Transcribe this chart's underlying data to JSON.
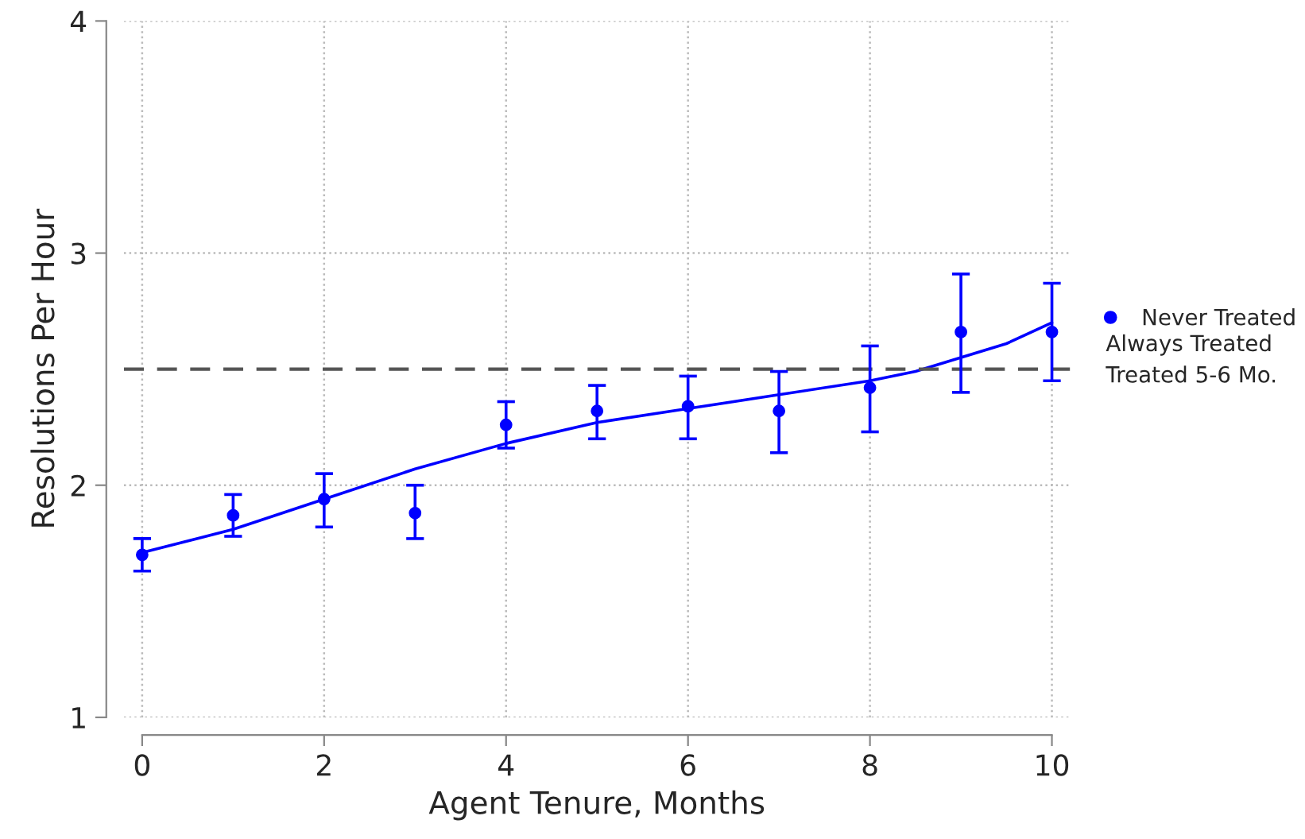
{
  "chart_data": {
    "type": "scatter",
    "xlabel": "Agent Tenure, Months",
    "ylabel": "Resolutions Per Hour",
    "x": [
      0,
      1,
      2,
      3,
      4,
      5,
      6,
      7,
      8,
      9,
      10
    ],
    "series": [
      {
        "name": "Never Treated",
        "marker": "circle",
        "color": "#0000ff",
        "values": [
          1.7,
          1.87,
          1.94,
          1.88,
          2.26,
          2.32,
          2.34,
          2.32,
          2.42,
          2.66,
          2.66
        ],
        "errors": [
          [
            1.63,
            1.77
          ],
          [
            1.78,
            1.96
          ],
          [
            1.82,
            2.05
          ],
          [
            1.77,
            2.0
          ],
          [
            2.16,
            2.36
          ],
          [
            2.2,
            2.43
          ],
          [
            2.2,
            2.47
          ],
          [
            2.14,
            2.49
          ],
          [
            2.23,
            2.6
          ],
          [
            2.4,
            2.91
          ],
          [
            2.45,
            2.87
          ]
        ]
      },
      {
        "type": "line",
        "color": "#0000ff",
        "x": [
          0,
          1,
          2,
          3,
          4,
          5,
          6,
          7,
          8,
          8.5,
          9,
          9.5,
          10
        ],
        "values": [
          1.71,
          1.81,
          1.94,
          2.07,
          2.18,
          2.27,
          2.33,
          2.39,
          2.45,
          2.49,
          2.55,
          2.61,
          2.7
        ]
      }
    ],
    "ref_lines": [
      {
        "axis": "y",
        "value": 2.5,
        "color": "#555555",
        "line_style": "dashed"
      }
    ],
    "annotations": [
      "Always Treated",
      "Treated 5-6 Mo."
    ],
    "xlim": [
      -0.2,
      10.2
    ],
    "ylim": [
      1,
      4
    ],
    "xticks": [
      0,
      2,
      4,
      6,
      8,
      10
    ],
    "yticks": [
      1,
      2,
      3,
      4
    ],
    "grid": true,
    "legend": "right"
  }
}
